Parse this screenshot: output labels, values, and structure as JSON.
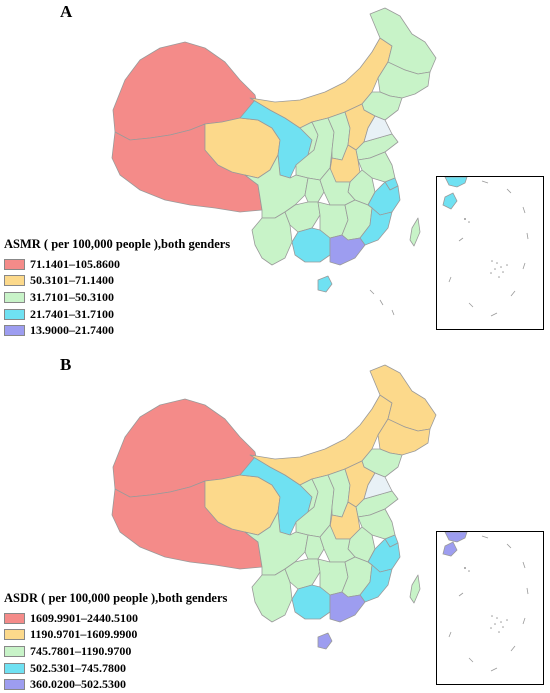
{
  "colors": {
    "class1": "#f48b89",
    "class2": "#fcd98b",
    "class3": "#c8f3c8",
    "class4": "#6fe1f2",
    "class5": "#9d9df0",
    "water": "#e8f1f6",
    "border": "#9a9a9a"
  },
  "panels": [
    {
      "label": "A",
      "legend": {
        "title": "ASMR ( per 100,000 people ),both genders",
        "items": [
          {
            "label": "71.1401–105.8600",
            "color": "#f48b89"
          },
          {
            "label": "50.3101–71.1400",
            "color": "#fcd98b"
          },
          {
            "label": "31.7101–50.3100",
            "color": "#c8f3c8"
          },
          {
            "label": "21.7401–31.7100",
            "color": "#6fe1f2"
          },
          {
            "label": "13.9000–21.7400",
            "color": "#9d9df0"
          }
        ]
      }
    },
    {
      "label": "B",
      "legend": {
        "title": "ASDR ( per 100,000 people ),both genders",
        "items": [
          {
            "label": "1609.9901–2440.5100",
            "color": "#f48b89"
          },
          {
            "label": "1190.9701–1609.9900",
            "color": "#fcd98b"
          },
          {
            "label": "745.7801–1190.9700",
            "color": "#c8f3c8"
          },
          {
            "label": "502.5301–745.7800",
            "color": "#6fe1f2"
          },
          {
            "label": "360.0200–502.5300",
            "color": "#9d9df0"
          }
        ]
      }
    }
  ]
}
